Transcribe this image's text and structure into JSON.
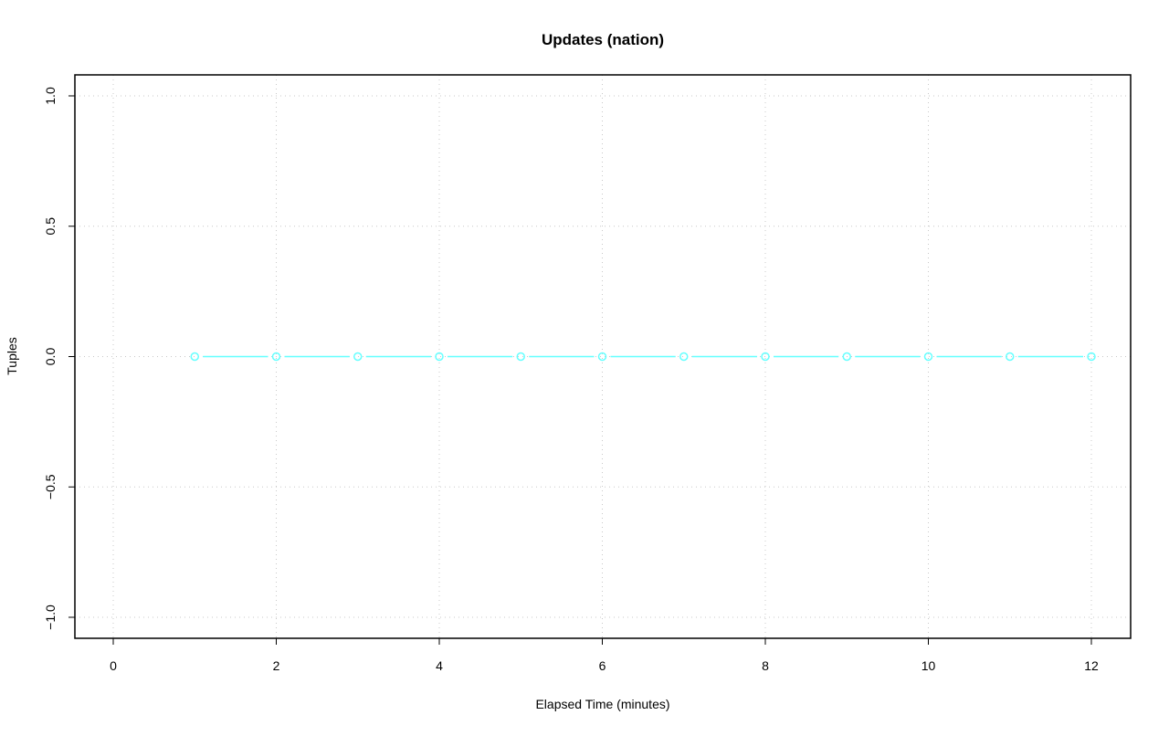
{
  "chart_data": {
    "type": "line",
    "title": "Updates (nation)",
    "xlabel": "Elapsed Time (minutes)",
    "ylabel": "Tuples",
    "xlim": [
      0,
      12
    ],
    "ylim": [
      -1,
      1
    ],
    "x_ticks": [
      0,
      2,
      4,
      6,
      8,
      10,
      12
    ],
    "y_ticks": [
      -1.0,
      -0.5,
      0.0,
      0.5,
      1.0
    ],
    "x_tick_labels": [
      "0",
      "2",
      "4",
      "6",
      "8",
      "10",
      "12"
    ],
    "y_tick_labels": [
      "−1.0",
      "−0.5",
      "0.0",
      "0.5",
      "1.0"
    ],
    "grid": true,
    "series": [
      {
        "color": "#66ffff",
        "x": [
          1,
          2,
          3,
          4,
          5,
          6,
          7,
          8,
          9,
          10,
          11,
          12
        ],
        "y": [
          0,
          0,
          0,
          0,
          0,
          0,
          0,
          0,
          0,
          0,
          0,
          0
        ]
      }
    ]
  }
}
